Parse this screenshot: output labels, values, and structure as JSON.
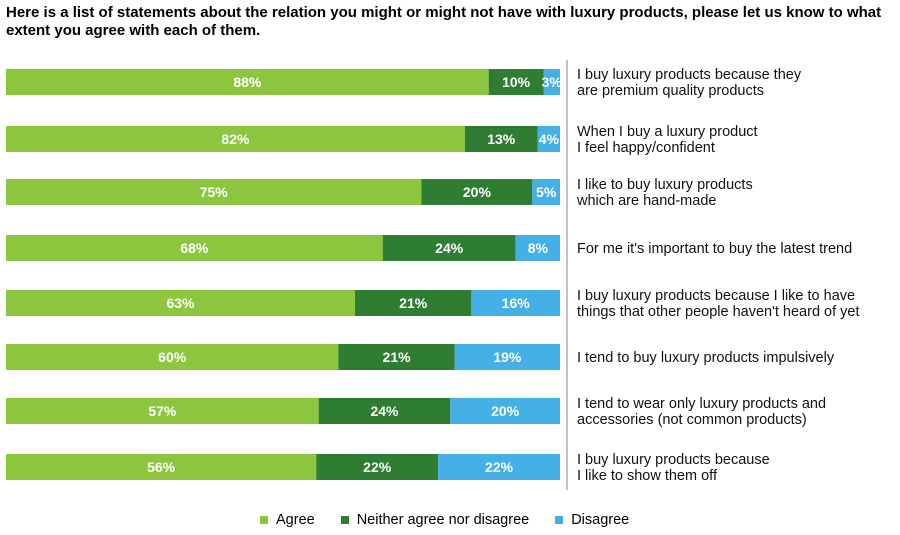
{
  "title": "Here is a list of statements about the relation you might or might not have with luxury products, please let us know to what extent you agree with each of them.",
  "colors": {
    "agree": "#8cc63f",
    "neither": "#2e7d32",
    "disagree": "#45b0e6"
  },
  "chart_data": {
    "type": "bar",
    "orientation": "horizontal-stacked-100",
    "title": "Here is a list of statements about the relation you might or might not have with luxury products, please let us know to what extent you agree with each of them.",
    "categories": [
      [
        "I buy luxury products because they",
        "are premium quality products"
      ],
      [
        "When I buy a luxury product",
        "I feel happy/confident"
      ],
      [
        "I like to buy luxury products",
        "which are hand-made"
      ],
      [
        "For me it's important to buy the latest trend"
      ],
      [
        "I buy luxury products because I like to have",
        "things that other people haven't heard of yet"
      ],
      [
        "I tend to buy luxury products impulsively"
      ],
      [
        "I tend to wear only luxury products and",
        "accessories (not common products)"
      ],
      [
        "I buy luxury products because",
        "I like to show them off"
      ]
    ],
    "series": [
      {
        "name": "Agree",
        "values": [
          88,
          82,
          75,
          68,
          63,
          60,
          57,
          56
        ],
        "labels": [
          "88%",
          "82%",
          "75%",
          "68%",
          "63%",
          "60%",
          "57%",
          "56%"
        ]
      },
      {
        "name": "Neither agree nor disagree",
        "values": [
          10,
          13,
          20,
          24,
          21,
          21,
          24,
          22
        ],
        "labels": [
          "10%",
          "13%",
          "20%",
          "24%",
          "21%",
          "21%",
          "24%",
          "22%"
        ]
      },
      {
        "name": "Disagree",
        "values": [
          3,
          4,
          5,
          8,
          16,
          19,
          20,
          22
        ],
        "labels": [
          "3%",
          "4%",
          "5%",
          "8%",
          "16%",
          "19%",
          "20%",
          "22%"
        ]
      }
    ],
    "legend_position": "bottom",
    "grid": false
  }
}
